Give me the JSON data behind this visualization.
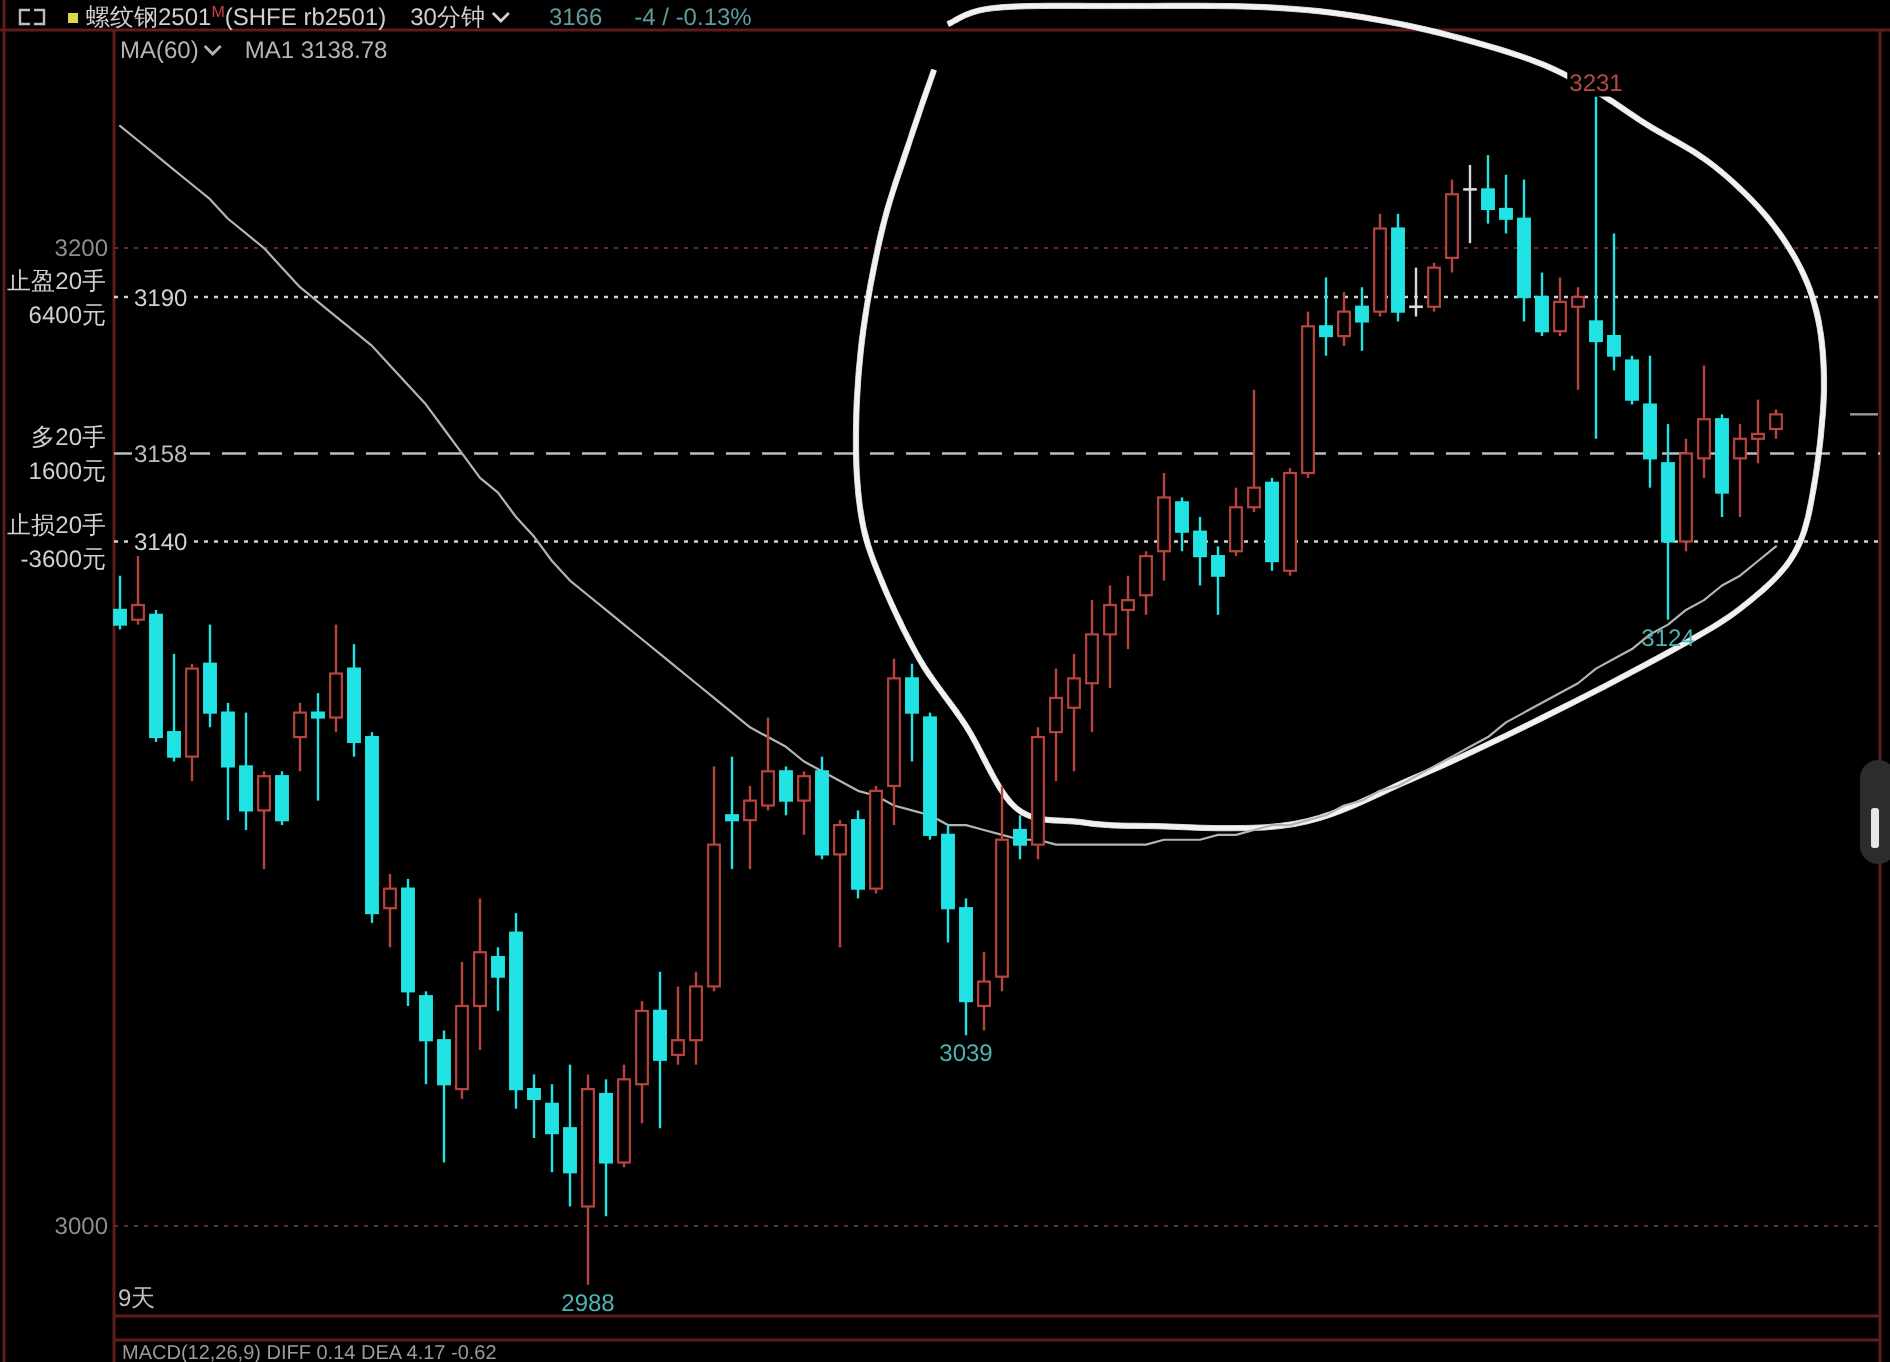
{
  "chart_data": {
    "type": "candlestick",
    "title": "螺纹钢2501$^{M}$(SHFE rb2501)",
    "subtitle": "30分钟",
    "legend_title": "MA(60)",
    "legend": "top left",
    "grid": "y",
    "categories": [
      null,
      null,
      null,
      null,
      null,
      null,
      null,
      null,
      null,
      null,
      null,
      null,
      null,
      null,
      null,
      null,
      null,
      null,
      null,
      null,
      null,
      null,
      null,
      null,
      null,
      null,
      null,
      null,
      null,
      null,
      null,
      null,
      null,
      null,
      null,
      null,
      null,
      null,
      null,
      null,
      null,
      null,
      null,
      null,
      null,
      null,
      null,
      null,
      null,
      null,
      null,
      null,
      null,
      null,
      null,
      null,
      null,
      null,
      null,
      null,
      null,
      null,
      null,
      null,
      null,
      null,
      null,
      null,
      null,
      null,
      null,
      null,
      null,
      null,
      null,
      null,
      null,
      null,
      null,
      null,
      null,
      null,
      null,
      null,
      null,
      null,
      null,
      null,
      null,
      null,
      null,
      null,
      null
    ],
    "ohlc": [
      [
        3126,
        3133,
        3122,
        3123
      ],
      [
        3124,
        3137,
        3123,
        3127
      ],
      [
        3125,
        3126,
        3099,
        3100
      ],
      [
        3101,
        3117,
        3095,
        3096
      ],
      [
        3096,
        3115,
        3091,
        3114
      ],
      [
        3115,
        3123,
        3102,
        3105
      ],
      [
        3105,
        3107,
        3083,
        3094
      ],
      [
        3094,
        3105,
        3081,
        3085
      ],
      [
        3085,
        3093,
        3073,
        3092
      ],
      [
        3092,
        3093,
        3082,
        3083
      ],
      [
        3100,
        3107,
        3093,
        3105
      ],
      [
        3105,
        3109,
        3087,
        3104
      ],
      [
        3104,
        3123,
        3101,
        3113
      ],
      [
        3114,
        3119,
        3096,
        3099
      ],
      [
        3100,
        3101,
        3062,
        3064
      ],
      [
        3065,
        3072,
        3057,
        3069
      ],
      [
        3069,
        3071,
        3045,
        3048
      ],
      [
        3047,
        3048,
        3029,
        3038
      ],
      [
        3038,
        3040,
        3013,
        3029
      ],
      [
        3028,
        3054,
        3026,
        3045
      ],
      [
        3045,
        3067,
        3036,
        3056
      ],
      [
        3055,
        3057,
        3044,
        3051
      ],
      [
        3060,
        3064,
        3024,
        3028
      ],
      [
        3028,
        3031,
        3018,
        3026
      ],
      [
        3025,
        3029,
        3011,
        3019
      ],
      [
        3020,
        3033,
        3004,
        3011
      ],
      [
        3004,
        3031,
        2988,
        3028
      ],
      [
        3027,
        3030,
        3002,
        3013
      ],
      [
        3013,
        3033,
        3012,
        3030
      ],
      [
        3029,
        3046,
        3021,
        3044
      ],
      [
        3044,
        3052,
        3020,
        3034
      ],
      [
        3035,
        3049,
        3033,
        3038
      ],
      [
        3038,
        3052,
        3033,
        3049
      ],
      [
        3049,
        3094,
        3048,
        3078
      ],
      [
        3084,
        3096,
        3073,
        3083
      ],
      [
        3083,
        3090,
        3073,
        3087
      ],
      [
        3086,
        3104,
        3085,
        3093
      ],
      [
        3093,
        3094,
        3084,
        3087
      ],
      [
        3087,
        3093,
        3080,
        3092
      ],
      [
        3093,
        3096,
        3075,
        3076
      ],
      [
        3076,
        3083,
        3057,
        3082
      ],
      [
        3083,
        3085,
        3067,
        3069
      ],
      [
        3069,
        3090,
        3068,
        3089
      ],
      [
        3090,
        3116,
        3082,
        3112
      ],
      [
        3112,
        3115,
        3095,
        3105
      ],
      [
        3104,
        3105,
        3079,
        3080
      ],
      [
        3080,
        3082,
        3058,
        3065
      ],
      [
        3065,
        3067,
        3039,
        3046
      ],
      [
        3045,
        3056,
        3040,
        3050
      ],
      [
        3051,
        3090,
        3048,
        3079
      ],
      [
        3081,
        3084,
        3075,
        3078
      ],
      [
        3078,
        3102,
        3075,
        3100
      ],
      [
        3101,
        3114,
        3091,
        3108
      ],
      [
        3106,
        3117,
        3093,
        3112
      ],
      [
        3111,
        3128,
        3101,
        3121
      ],
      [
        3121,
        3131,
        3110,
        3127
      ],
      [
        3126,
        3133,
        3118,
        3128
      ],
      [
        3129,
        3138,
        3125,
        3137
      ],
      [
        3138,
        3154,
        3132,
        3149
      ],
      [
        3148,
        3149,
        3138,
        3142
      ],
      [
        3142,
        3145,
        3131,
        3137
      ],
      [
        3137,
        3139,
        3125,
        3133
      ],
      [
        3138,
        3151,
        3137,
        3147
      ],
      [
        3147,
        3171,
        3146,
        3151
      ],
      [
        3152,
        3153,
        3134,
        3136
      ],
      [
        3134,
        3155,
        3133,
        3154
      ],
      [
        3154,
        3187,
        3153,
        3184
      ],
      [
        3184,
        3194,
        3178,
        3182
      ],
      [
        3182,
        3191,
        3180,
        3187
      ],
      [
        3188,
        3192,
        3179,
        3185
      ],
      [
        3187,
        3207,
        3186,
        3204
      ],
      [
        3204,
        3207,
        3185,
        3187
      ],
      [
        3188,
        3196,
        3186,
        3188
      ],
      [
        3188,
        3197,
        3187,
        3196
      ],
      [
        3198,
        3214,
        3195,
        3211
      ],
      [
        3212,
        3217,
        3201,
        3212
      ],
      [
        3212,
        3219,
        3205,
        3208
      ],
      [
        3208,
        3215,
        3203,
        3206
      ],
      [
        3206,
        3214,
        3185,
        3190
      ],
      [
        3190,
        3195,
        3182,
        3183
      ],
      [
        3183,
        3194,
        3182,
        3189
      ],
      [
        3188,
        3192,
        3171,
        3190
      ],
      [
        3185,
        3231,
        3161,
        3181
      ],
      [
        3182,
        3203,
        3175,
        3178
      ],
      [
        3177,
        3178,
        3168,
        3169
      ],
      [
        3168,
        3178,
        3151,
        3157
      ],
      [
        3156,
        3164,
        3124,
        3140
      ],
      [
        3140,
        3161,
        3138,
        3158
      ],
      [
        3157,
        3176,
        3153,
        3165
      ],
      [
        3165,
        3166,
        3145,
        3150
      ],
      [
        3157,
        3164,
        3145,
        3161
      ],
      [
        3161,
        3169,
        3156,
        3162
      ],
      [
        3163,
        3167,
        3161,
        3166
      ]
    ],
    "colors": [
      "#22e3e3",
      "#b8443f",
      "#22e3e3",
      "#22e3e3",
      "#b8443f",
      "#22e3e3",
      "#22e3e3",
      "#22e3e3",
      "#b8443f",
      "#22e3e3",
      "#b8443f",
      "#22e3e3",
      "#b8443f",
      "#22e3e3",
      "#22e3e3",
      "#b8443f",
      "#22e3e3",
      "#22e3e3",
      "#22e3e3",
      "#b8443f",
      "#b8443f",
      "#22e3e3",
      "#22e3e3",
      "#22e3e3",
      "#22e3e3",
      "#22e3e3",
      "#b8443f",
      "#22e3e3",
      "#b8443f",
      "#b8443f",
      "#22e3e3",
      "#b8443f",
      "#b8443f",
      "#b8443f",
      "#22e3e3",
      "#b8443f",
      "#b8443f",
      "#22e3e3",
      "#b8443f",
      "#22e3e3",
      "#b8443f",
      "#22e3e3",
      "#b8443f",
      "#b8443f",
      "#22e3e3",
      "#22e3e3",
      "#22e3e3",
      "#22e3e3",
      "#b8443f",
      "#b8443f",
      "#22e3e3",
      "#b8443f",
      "#b8443f",
      "#b8443f",
      "#b8443f",
      "#b8443f",
      "#b8443f",
      "#b8443f",
      "#b8443f",
      "#22e3e3",
      "#22e3e3",
      "#22e3e3",
      "#b8443f",
      "#b8443f",
      "#22e3e3",
      "#b8443f",
      "#b8443f",
      "#22e3e3",
      "#b8443f",
      "#22e3e3",
      "#b8443f",
      "#22e3e3",
      "#d9d9d9",
      "#b8443f",
      "#b8443f",
      "#d9d9d9",
      "#22e3e3",
      "#22e3e3",
      "#22e3e3",
      "#22e3e3",
      "#b8443f",
      "#b8443f",
      "#22e3e3",
      "#22e3e3",
      "#22e3e3",
      "#22e3e3",
      "#22e3e3",
      "#b8443f",
      "#b8443f",
      "#22e3e3",
      "#b8443f",
      "#b8443f",
      "#b8443f"
    ],
    "series": [
      {
        "type": "line",
        "name": "MA1 3138.78",
        "color": "#b4b4b4",
        "values": [
          3225,
          3222,
          3219,
          3216,
          3213,
          3210,
          3206,
          3203,
          3200,
          3196,
          3192,
          3189,
          3186,
          3183,
          3180,
          3176,
          3172,
          3168,
          3163,
          3158,
          3153,
          3150,
          3145,
          3141,
          3136,
          3132,
          3129,
          3126,
          3123,
          3120,
          3117,
          3114,
          3111,
          3108,
          3105,
          3102,
          3100,
          3098,
          3095,
          3093,
          3091,
          3089,
          3088,
          3086,
          3085,
          3084,
          3082,
          3082,
          3081,
          3080,
          3079,
          3079,
          3078,
          3078,
          3078,
          3078,
          3078,
          3078,
          3079,
          3079,
          3079,
          3080,
          3080,
          3081,
          3082,
          3082,
          3083,
          3084,
          3086,
          3087,
          3089,
          3090,
          3092,
          3094,
          3096,
          3098,
          3100,
          3103,
          3105,
          3107,
          3109,
          3111,
          3114,
          3116,
          3118,
          3121,
          3123,
          3126,
          3128,
          3131,
          3133,
          3136,
          3139
        ]
      }
    ],
    "ylim": [
      2981.6,
      3244.6
    ],
    "yticks": [
      3000,
      3200
    ],
    "ref_lines": [
      {
        "axis": "y",
        "value": 3190,
        "label": "3190",
        "color": "#d2d2d2",
        "line_style": "dotted"
      },
      {
        "axis": "y",
        "value": 3158,
        "label": "3158",
        "color": "#bdbdbd",
        "line_style": "dashed"
      },
      {
        "axis": "y",
        "value": 3140,
        "label": "3140",
        "color": "#d2d2d2",
        "line_style": "dotted"
      }
    ],
    "annotations": [
      "3166",
      "-4 / -0.13%",
      "9天",
      "MACD(12,26,9)  DIFF 0.14  DEA 4.17  -0.62",
      "止盈20手",
      "6400元",
      "多20手",
      "1600元",
      "止损20手",
      "-3600元",
      {
        "text": "3231",
        "y": 3231
      },
      {
        "text": "3124",
        "y": 3124
      },
      {
        "text": "3039",
        "y": 3039
      },
      {
        "text": "2988",
        "y": 2988
      }
    ]
  }
}
